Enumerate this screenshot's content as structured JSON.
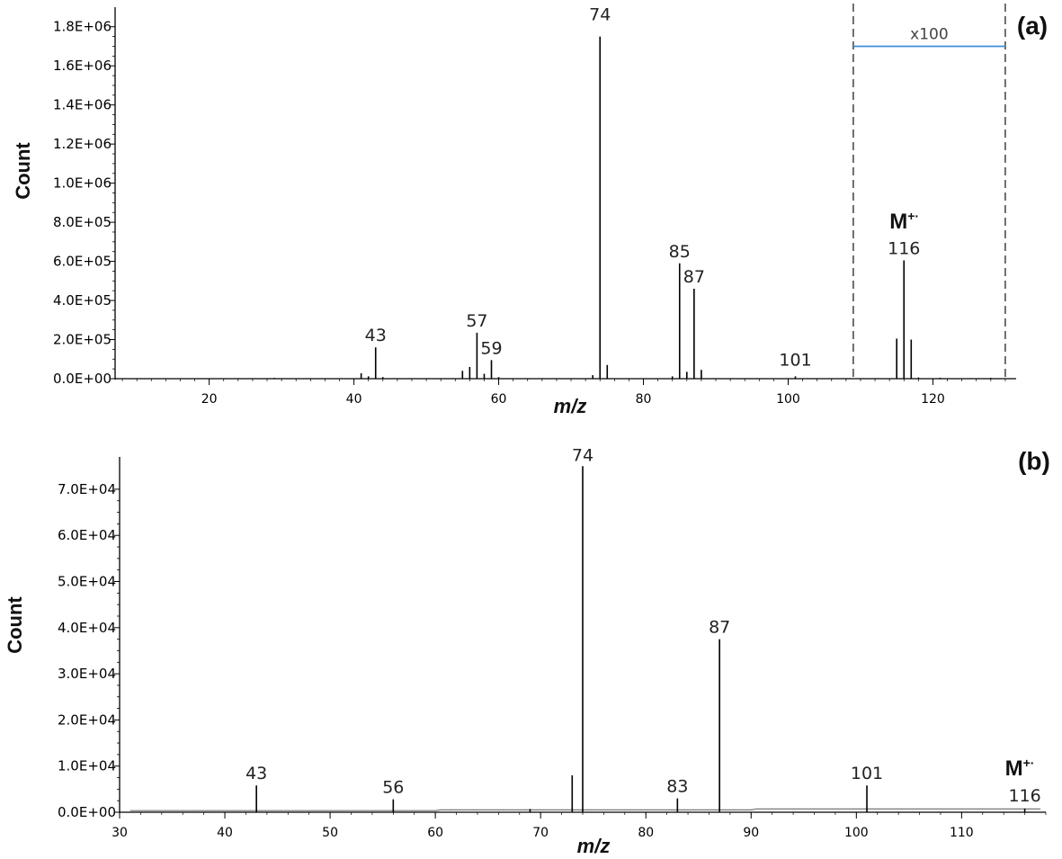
{
  "chart_data": [
    {
      "type": "bar",
      "panel_label": "(a)",
      "xlabel": "m/z",
      "ylabel": "Count",
      "xlim": [
        7,
        131.5
      ],
      "ylim": [
        0,
        1900000
      ],
      "x_ticks": [
        "20",
        "40",
        "60",
        "80",
        "100",
        "120"
      ],
      "y_ticks": [
        "0.0E+00",
        "2.0E+05",
        "4.0E+05",
        "6.0E+05",
        "8.0E+05",
        "1.0E+06",
        "1.2E+06",
        "1.4E+06",
        "1.6E+06",
        "1.8E+06"
      ],
      "grid": false,
      "peaks": [
        {
          "x": 29,
          "y": 4000
        },
        {
          "x": 41,
          "y": 28000
        },
        {
          "x": 42,
          "y": 12000
        },
        {
          "x": 43,
          "y": 160000,
          "label": "43"
        },
        {
          "x": 44,
          "y": 8000
        },
        {
          "x": 55,
          "y": 40000
        },
        {
          "x": 56,
          "y": 60000
        },
        {
          "x": 57,
          "y": 235000,
          "label": "57"
        },
        {
          "x": 58,
          "y": 25000
        },
        {
          "x": 59,
          "y": 95000,
          "label": "59"
        },
        {
          "x": 60,
          "y": 8000
        },
        {
          "x": 73,
          "y": 18000
        },
        {
          "x": 74,
          "y": 1750000,
          "label": "74"
        },
        {
          "x": 75,
          "y": 70000
        },
        {
          "x": 84,
          "y": 12000
        },
        {
          "x": 85,
          "y": 590000,
          "label": "85"
        },
        {
          "x": 86,
          "y": 35000
        },
        {
          "x": 87,
          "y": 460000,
          "label": "87"
        },
        {
          "x": 88,
          "y": 45000
        },
        {
          "x": 101,
          "y": 12000,
          "label": "101"
        },
        {
          "x": 115,
          "y": 205000
        },
        {
          "x": 116,
          "y": 605000,
          "label": "116"
        },
        {
          "x": 117,
          "y": 200000
        },
        {
          "x": 118,
          "y": 6000
        },
        {
          "x": 121,
          "y": 5000
        },
        {
          "x": 128,
          "y": 4000
        }
      ],
      "annotations": {
        "molecular_ion": "M",
        "molecular_ion_sup": "+·",
        "magnification_label": "x100",
        "magnified_region": [
          109,
          130
        ],
        "magnification_bar_y": 1700000
      },
      "colors": {
        "magnification_bar": "#3b8fd6",
        "peaks": "#000000"
      }
    },
    {
      "type": "bar",
      "panel_label": "(b)",
      "xlabel": "m/z",
      "ylabel": "Count",
      "xlim": [
        30,
        118
      ],
      "ylim": [
        0,
        77000
      ],
      "x_ticks": [
        "30",
        "40",
        "50",
        "60",
        "70",
        "80",
        "90",
        "100",
        "110"
      ],
      "y_ticks": [
        "0.0E+00",
        "1.0E+04",
        "2.0E+04",
        "3.0E+04",
        "4.0E+04",
        "5.0E+04",
        "6.0E+04",
        "7.0E+04"
      ],
      "grid": false,
      "peaks": [
        {
          "x": 43,
          "y": 5800,
          "label": "43"
        },
        {
          "x": 56,
          "y": 2800,
          "label": "56"
        },
        {
          "x": 69,
          "y": 700
        },
        {
          "x": 73,
          "y": 8000
        },
        {
          "x": 74,
          "y": 75000,
          "label": "74"
        },
        {
          "x": 83,
          "y": 3000,
          "label": "83"
        },
        {
          "x": 87,
          "y": 37500,
          "label": "87"
        },
        {
          "x": 101,
          "y": 5800,
          "label": "101"
        },
        {
          "x": 116,
          "y": 800,
          "label": "116"
        }
      ],
      "annotations": {
        "molecular_ion": "M",
        "molecular_ion_sup": "+·"
      },
      "colors": {
        "peaks": "#000000",
        "baseline": "#777777"
      }
    }
  ]
}
